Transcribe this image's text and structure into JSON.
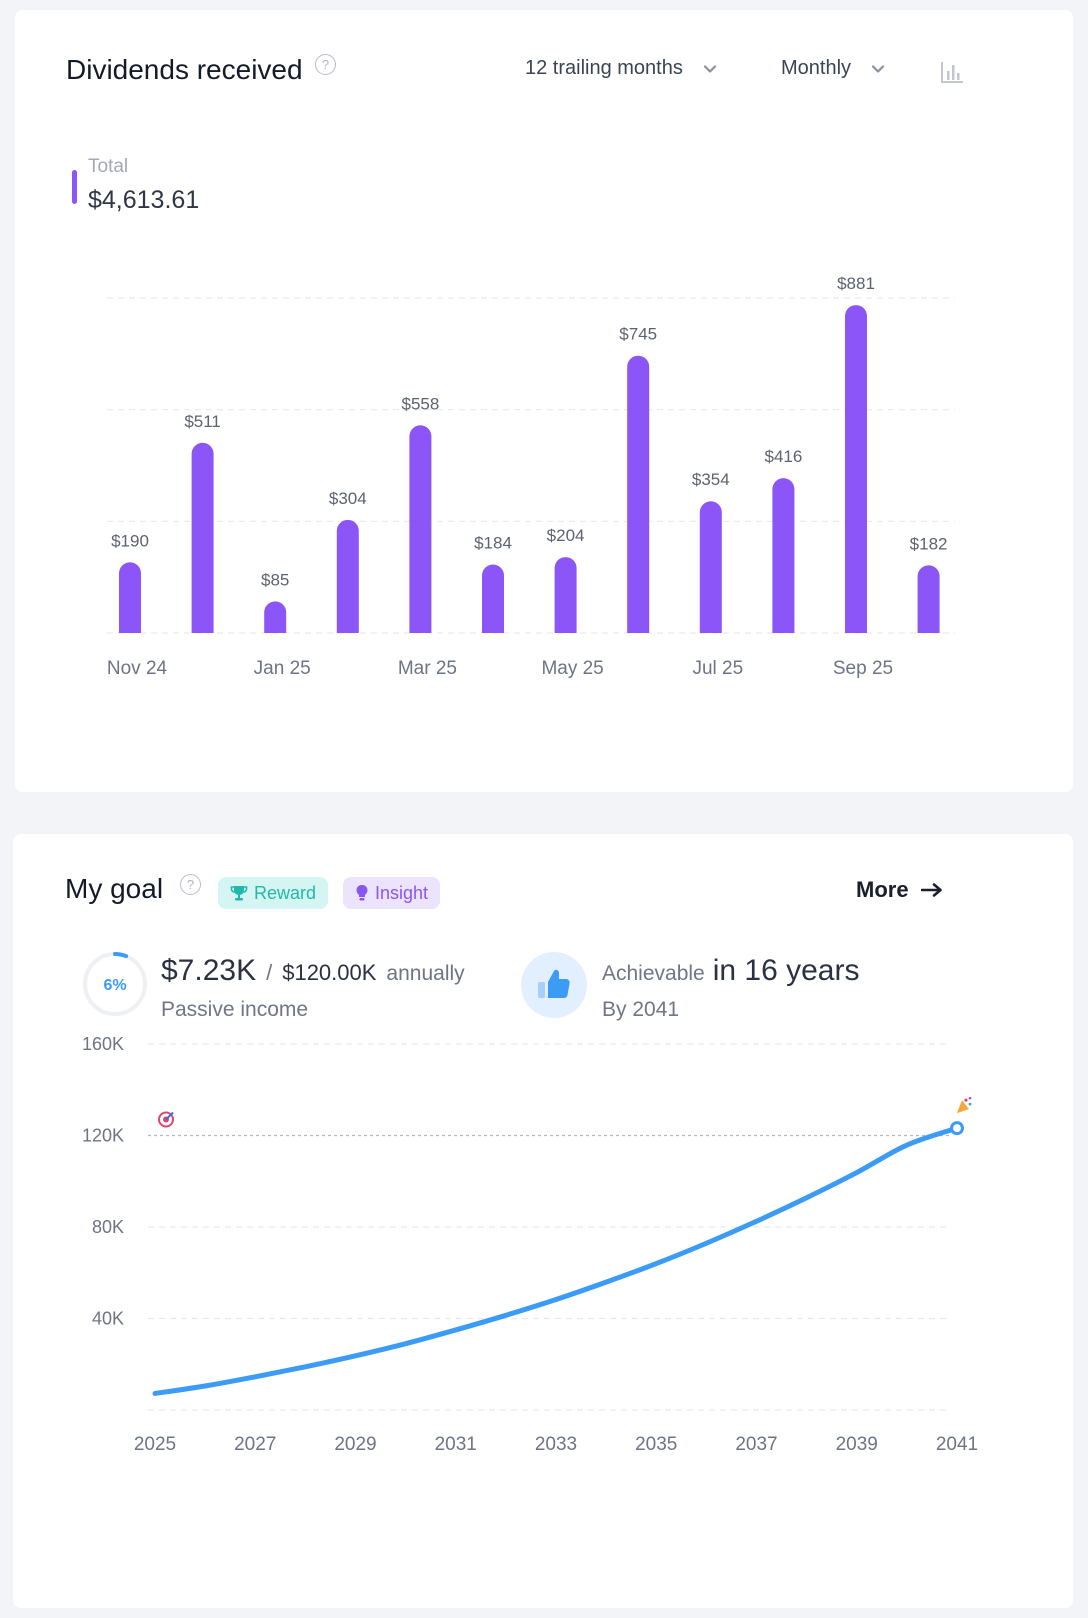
{
  "dividends": {
    "title": "Dividends received",
    "range_label": "12 trailing months",
    "period_label": "Monthly",
    "legend_label": "Total",
    "total_value": "$4,613.61",
    "bar_color": "#8b55f7"
  },
  "goal": {
    "title": "My goal",
    "reward_label": "Reward",
    "insight_label": "Insight",
    "more_label": "More",
    "progress_percent": 6,
    "progress_label": "6%",
    "current_value": "$7.23K",
    "separator": "/",
    "target_value": "$120.00K",
    "target_unit": "annually",
    "passive_label": "Passive income",
    "achievable_label": "Achievable",
    "achievable_value": "in 16 years",
    "by_label": "By 2041",
    "line_color": "#3b9bf5"
  },
  "chart_data": [
    {
      "type": "bar",
      "categories": [
        "Nov 24",
        "Dec 24",
        "Jan 25",
        "Feb 25",
        "Mar 25",
        "Apr 25",
        "May 25",
        "Jun 25",
        "Jul 25",
        "Aug 25",
        "Sep 25",
        "Oct 25"
      ],
      "x_tick_labels": [
        "Nov 24",
        "Jan 25",
        "Mar 25",
        "May 25",
        "Jul 25",
        "Sep 25"
      ],
      "values": [
        190,
        511,
        85,
        304,
        558,
        184,
        204,
        745,
        354,
        416,
        881,
        182
      ],
      "data_labels": [
        "$190",
        "$511",
        "$85",
        "$304",
        "$558",
        "$184",
        "$204",
        "$745",
        "$354",
        "$416",
        "$881",
        "$182"
      ],
      "ylim": [
        0,
        900
      ],
      "grid": true,
      "legend": "top-left"
    },
    {
      "type": "line",
      "x": [
        2025,
        2026,
        2027,
        2028,
        2029,
        2030,
        2031,
        2032,
        2033,
        2034,
        2035,
        2036,
        2037,
        2038,
        2039,
        2040,
        2041
      ],
      "x_tick_labels": [
        "2025",
        "2027",
        "2029",
        "2031",
        "2033",
        "2035",
        "2037",
        "2039",
        "2041"
      ],
      "values": [
        7230,
        10500,
        14500,
        18900,
        23700,
        29000,
        35000,
        41400,
        48300,
        55900,
        64000,
        72900,
        82500,
        92800,
        103800,
        115800,
        123200
      ],
      "y_tick_labels": [
        "160K",
        "120K",
        "80K",
        "40K"
      ],
      "ylim": [
        0,
        160000
      ],
      "goal_line": 120000,
      "grid": true
    }
  ]
}
